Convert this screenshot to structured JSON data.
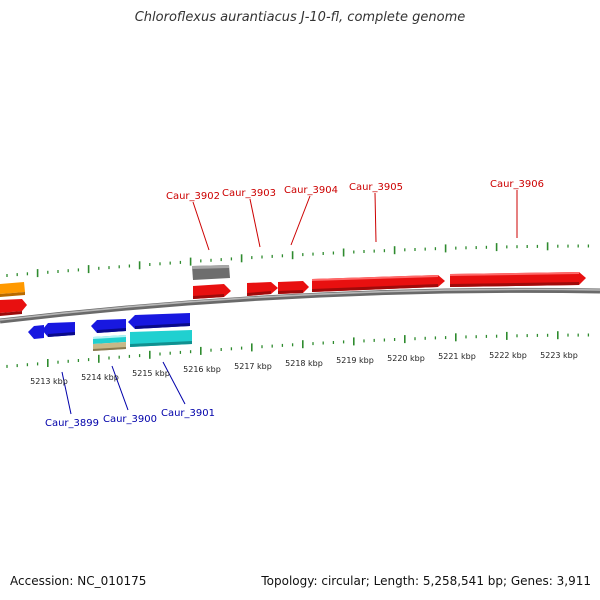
{
  "title": "Chloroflexus aurantiacus J-10-fl, complete genome",
  "footer": {
    "accession": "Accession: NC_010175",
    "stats": "Topology: circular; Length: 5,258,541 bp; Genes: 3,911"
  },
  "colors": {
    "forward_gene": "#e81010",
    "reverse_gene": "#1818e0",
    "forward_label": "#cc0000",
    "reverse_label": "#0000aa",
    "tick": "#2e8b2e",
    "backbone": "#8a8a8a",
    "rna_gray": "#6e6e6e",
    "cyan": "#20d0d0",
    "orange": "#ff9900",
    "tan": "#c8b888"
  },
  "ruler_labels": [
    "5213 kbp",
    "5214 kbp",
    "5215 kbp",
    "5216 kbp",
    "5217 kbp",
    "5218 kbp",
    "5219 kbp",
    "5220 kbp",
    "5221 kbp",
    "5222 kbp",
    "5223 kbp"
  ],
  "labels_forward": [
    "Caur_3902",
    "Caur_3903",
    "Caur_3904",
    "Caur_3905",
    "Caur_3906"
  ],
  "labels_reverse": [
    "Caur_3899",
    "Caur_3900",
    "Caur_3901"
  ]
}
